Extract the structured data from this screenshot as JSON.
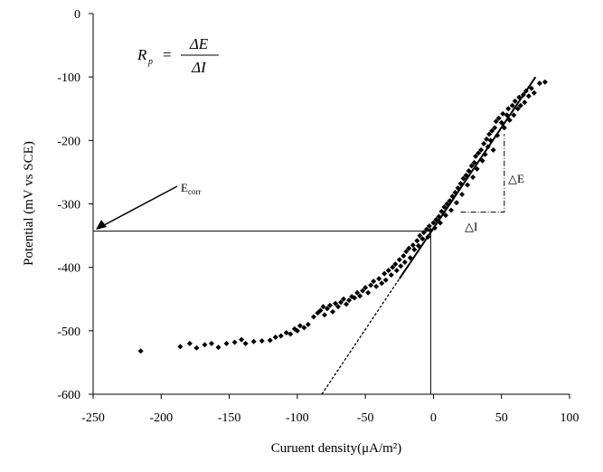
{
  "chart_data": {
    "type": "scatter",
    "xlabel": "Curuent density(μA/m²)",
    "ylabel": "Potential (mV vs SCE)",
    "xlim": [
      -250,
      100
    ],
    "xticks": [
      -250,
      -200,
      -150,
      -100,
      -50,
      0,
      50,
      100
    ],
    "ylim": [
      -600,
      0
    ],
    "yticks": [
      -600,
      -500,
      -400,
      -300,
      -200,
      -100,
      0
    ],
    "series": [
      {
        "color": "#000000",
        "x": [
          -215,
          -186,
          -179,
          -174,
          -168,
          -163,
          -158,
          -152,
          -146,
          -141,
          -138,
          -132,
          -126,
          -120,
          -116,
          -112,
          -108,
          -105,
          -102,
          -100,
          -98,
          -95,
          -92,
          -88,
          -85,
          -83,
          -81,
          -80,
          -78,
          -76,
          -74,
          -72,
          -70,
          -68,
          -66,
          -64,
          -62,
          -60,
          -58,
          -56,
          -54,
          -52,
          -50,
          -48,
          -46,
          -44,
          -42,
          -40,
          -38,
          -36,
          -35,
          -33,
          -31,
          -30,
          -28,
          -27,
          -25,
          -24,
          -22,
          -21,
          -20,
          -18,
          -17,
          -15,
          -14,
          -12,
          -11,
          -10,
          -8,
          -7,
          -5,
          -4,
          -3,
          -2,
          0,
          1,
          2,
          4,
          5,
          6,
          8,
          9,
          10,
          12,
          13,
          14,
          16,
          17,
          18,
          20,
          21,
          22,
          24,
          25,
          26,
          28,
          29,
          30,
          31,
          32,
          33,
          35,
          36,
          37,
          38,
          39,
          40,
          41,
          42,
          43,
          44,
          45,
          46,
          47,
          48,
          50,
          51,
          52,
          54,
          55,
          56,
          58,
          59,
          60,
          62,
          63,
          64,
          66,
          67,
          68,
          70,
          72,
          74,
          78,
          82
        ],
        "values": [
          -532,
          -525,
          -520,
          -527,
          -522,
          -520,
          -526,
          -520,
          -518,
          -514,
          -520,
          -517,
          -516,
          -515,
          -510,
          -508,
          -503,
          -505,
          -497,
          -500,
          -492,
          -495,
          -490,
          -478,
          -472,
          -468,
          -462,
          -475,
          -465,
          -460,
          -470,
          -457,
          -462,
          -455,
          -450,
          -458,
          -452,
          -446,
          -448,
          -440,
          -445,
          -437,
          -432,
          -440,
          -428,
          -422,
          -430,
          -418,
          -425,
          -410,
          -420,
          -405,
          -412,
          -400,
          -395,
          -405,
          -388,
          -398,
          -382,
          -392,
          -375,
          -370,
          -385,
          -365,
          -372,
          -358,
          -366,
          -350,
          -355,
          -345,
          -340,
          -352,
          -335,
          -342,
          -330,
          -338,
          -325,
          -320,
          -330,
          -312,
          -305,
          -318,
          -300,
          -295,
          -310,
          -288,
          -282,
          -298,
          -275,
          -268,
          -285,
          -260,
          -255,
          -270,
          -248,
          -240,
          -258,
          -235,
          -225,
          -245,
          -220,
          -215,
          -232,
          -205,
          -222,
          -198,
          -210,
          -190,
          -200,
          -185,
          -215,
          -180,
          -170,
          -192,
          -165,
          -172,
          -158,
          -180,
          -160,
          -150,
          -168,
          -145,
          -160,
          -138,
          -150,
          -132,
          -145,
          -128,
          -140,
          -122,
          -130,
          -118,
          -125,
          -110,
          -108
        ]
      }
    ],
    "fit_line": {
      "x": [
        -82,
        -25,
        75
      ],
      "y": [
        -600,
        -418,
        -100
      ]
    },
    "ecorr": {
      "label": "E",
      "sub": "corr",
      "potential": -343,
      "current": -2
    },
    "formula": {
      "lhs": "R",
      "lhs_sub": "p",
      "eq": "=",
      "num": "ΔE",
      "den": "ΔI"
    },
    "delta_e": "△E",
    "delta_i": "△I"
  }
}
